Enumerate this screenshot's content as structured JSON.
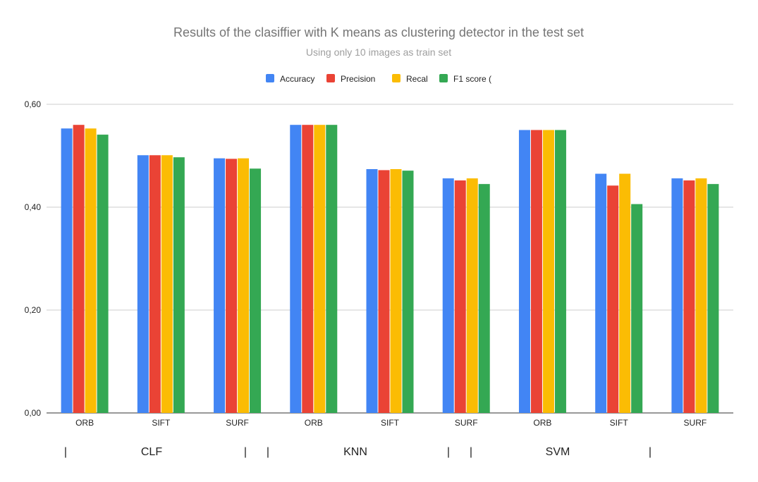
{
  "chart_data": {
    "type": "bar",
    "title": "Results of the clasiffier with K means as clustering detector in the test set",
    "subtitle": "Using only 10 images as train set",
    "xlabel": "",
    "ylabel": "",
    "ylim": [
      0,
      0.6
    ],
    "yticks": [
      "0,00",
      "0,20",
      "0,40",
      "0,60"
    ],
    "yticks_values": [
      0,
      0.2,
      0.4,
      0.6
    ],
    "grid": true,
    "legend_position": "top",
    "categories": [
      "ORB",
      "SIFT",
      "SURF",
      "ORB",
      "SIFT",
      "SURF",
      "ORB",
      "SIFT",
      "SURF"
    ],
    "groups": [
      {
        "label": "CLF",
        "open_mark": "|",
        "close_mark": "|"
      },
      {
        "label": "KNN",
        "open_mark": "|",
        "close_mark": "|"
      },
      {
        "label": "SVM",
        "open_mark": "|",
        "close_mark": "|"
      }
    ],
    "series": [
      {
        "name": "Accuracy",
        "color": "#4285f4",
        "values": [
          0.553,
          0.501,
          0.495,
          0.56,
          0.474,
          0.456,
          0.55,
          0.465,
          0.456
        ]
      },
      {
        "name": "Precision",
        "color": "#ea4335",
        "values": [
          0.56,
          0.501,
          0.494,
          0.56,
          0.472,
          0.452,
          0.55,
          0.442,
          0.452
        ]
      },
      {
        "name": "Recal",
        "color": "#fbbc04",
        "values": [
          0.553,
          0.501,
          0.495,
          0.56,
          0.474,
          0.456,
          0.55,
          0.465,
          0.456
        ]
      },
      {
        "name": "F1 score (",
        "color": "#34a853",
        "values": [
          0.541,
          0.497,
          0.475,
          0.56,
          0.471,
          0.445,
          0.55,
          0.406,
          0.445
        ]
      }
    ]
  }
}
